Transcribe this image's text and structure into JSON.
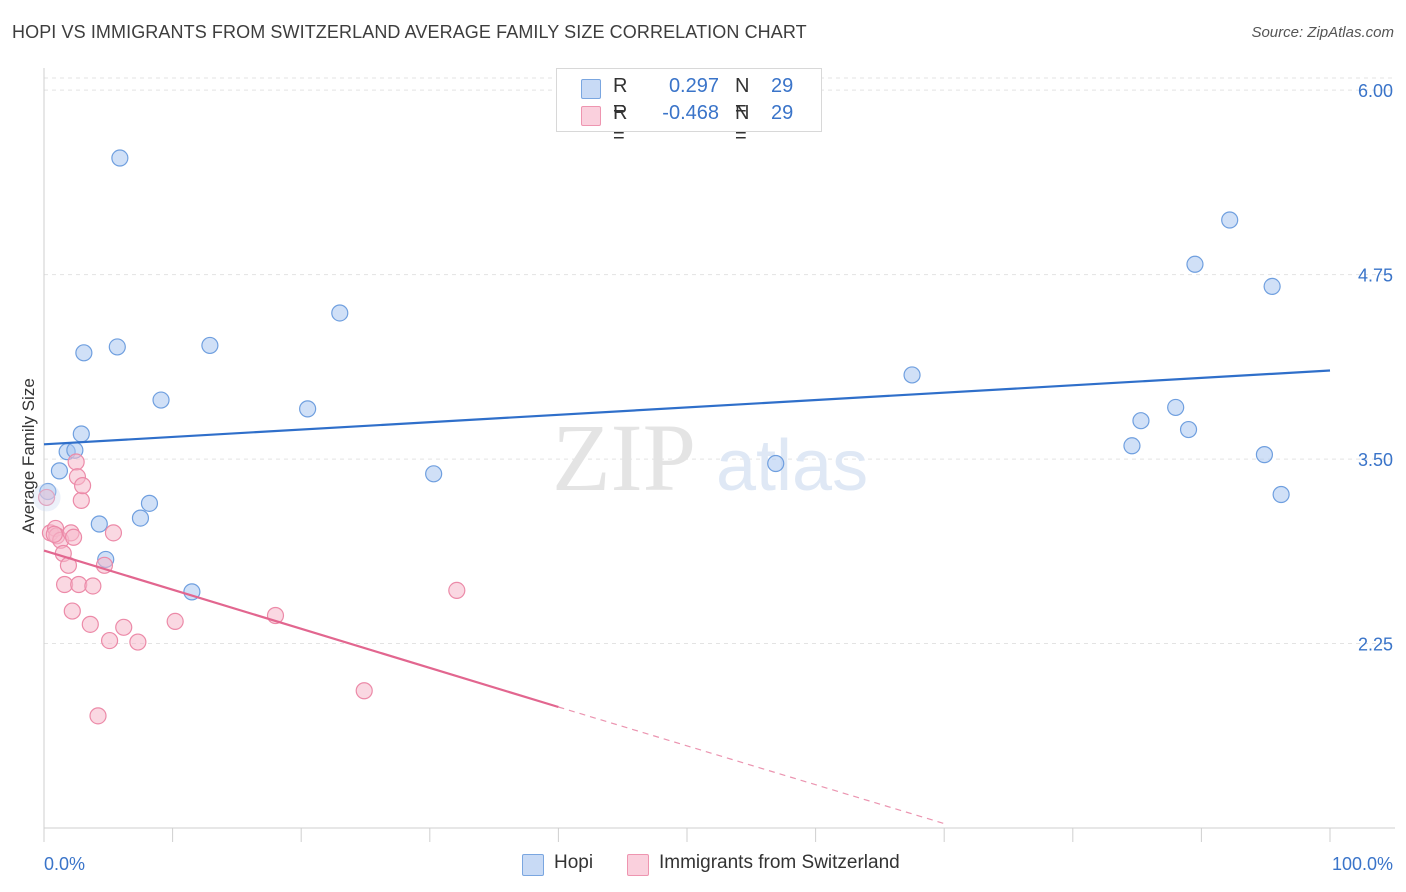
{
  "title": "HOPI VS IMMIGRANTS FROM SWITZERLAND AVERAGE FAMILY SIZE CORRELATION CHART",
  "source": "Source: ZipAtlas.com",
  "watermark": {
    "zip": "ZIP",
    "atlas": "atlas"
  },
  "legend": {
    "rows": [
      {
        "r_label": "R =",
        "r_value": "0.297",
        "n_label": "N =",
        "n_value": "29",
        "color": "#a9c6f0"
      },
      {
        "r_label": "R =",
        "r_value": "-0.468",
        "n_label": "N =",
        "n_value": "29",
        "color": "#f5b8cb"
      }
    ]
  },
  "bottom_legend": [
    {
      "label": "Hopi",
      "color": "#a9c6f0"
    },
    {
      "label": "Immigrants from Switzerland",
      "color": "#f5b8cb"
    }
  ],
  "chart_data": {
    "type": "scatter",
    "title": "HOPI VS IMMIGRANTS FROM SWITZERLAND AVERAGE FAMILY SIZE CORRELATION CHART",
    "xlabel": "",
    "ylabel": "Average Family Size",
    "xlim": [
      0,
      100
    ],
    "ylim": [
      1.0,
      6.15
    ],
    "x_tick_labels": [
      "0.0%",
      "100.0%"
    ],
    "y_ticks": [
      2.25,
      3.5,
      4.75,
      6.0
    ],
    "y_tick_labels": [
      "2.25",
      "3.50",
      "4.75",
      "6.00"
    ],
    "grid": true,
    "series": [
      {
        "name": "Hopi",
        "color": "#a9c6f0",
        "stroke": "#6f9fdf",
        "line_color": "#2f6fca",
        "trend": {
          "x0": 0,
          "y0": 3.6,
          "x1": 100,
          "y1": 4.1
        },
        "points": [
          [
            0.3,
            3.28
          ],
          [
            1.2,
            3.42
          ],
          [
            1.8,
            3.55
          ],
          [
            2.4,
            3.56
          ],
          [
            2.9,
            3.67
          ],
          [
            3.1,
            4.22
          ],
          [
            4.3,
            3.06
          ],
          [
            4.8,
            2.82
          ],
          [
            5.7,
            4.26
          ],
          [
            5.9,
            5.54
          ],
          [
            7.5,
            3.1
          ],
          [
            8.2,
            3.2
          ],
          [
            9.1,
            3.9
          ],
          [
            11.5,
            2.6
          ],
          [
            12.9,
            4.27
          ],
          [
            20.5,
            3.84
          ],
          [
            23.0,
            4.49
          ],
          [
            30.3,
            3.4
          ],
          [
            56.9,
            3.47
          ],
          [
            67.5,
            4.07
          ],
          [
            84.6,
            3.59
          ],
          [
            85.3,
            3.76
          ],
          [
            88.0,
            3.85
          ],
          [
            89.5,
            4.82
          ],
          [
            89.0,
            3.7
          ],
          [
            92.2,
            5.12
          ],
          [
            94.9,
            3.53
          ],
          [
            95.5,
            4.67
          ],
          [
            96.2,
            3.26
          ]
        ]
      },
      {
        "name": "Immigrants from Switzerland",
        "color": "#f5b8cb",
        "stroke": "#ec8aa8",
        "line_color": "#e2668f",
        "trend": {
          "x0": 0,
          "y0": 2.88,
          "x1": 40,
          "y1": 1.82
        },
        "trend_dash": {
          "x0": 40,
          "y0": 1.82,
          "x1": 70,
          "y1": 1.03
        },
        "points": [
          [
            0.2,
            3.24
          ],
          [
            0.5,
            3.0
          ],
          [
            0.9,
            3.03
          ],
          [
            1.0,
            2.98
          ],
          [
            1.3,
            2.95
          ],
          [
            1.5,
            2.86
          ],
          [
            1.6,
            2.65
          ],
          [
            1.9,
            2.78
          ],
          [
            2.1,
            3.0
          ],
          [
            2.2,
            2.47
          ],
          [
            2.3,
            2.97
          ],
          [
            2.5,
            3.48
          ],
          [
            2.6,
            3.38
          ],
          [
            2.7,
            2.65
          ],
          [
            2.9,
            3.22
          ],
          [
            3.0,
            3.32
          ],
          [
            3.6,
            2.38
          ],
          [
            3.8,
            2.64
          ],
          [
            4.2,
            1.76
          ],
          [
            4.7,
            2.78
          ],
          [
            5.1,
            2.27
          ],
          [
            5.4,
            3.0
          ],
          [
            6.2,
            2.36
          ],
          [
            7.3,
            2.26
          ],
          [
            10.2,
            2.4
          ],
          [
            18.0,
            2.44
          ],
          [
            24.9,
            1.93
          ],
          [
            32.1,
            2.61
          ],
          [
            0.8,
            2.99
          ]
        ]
      }
    ]
  }
}
